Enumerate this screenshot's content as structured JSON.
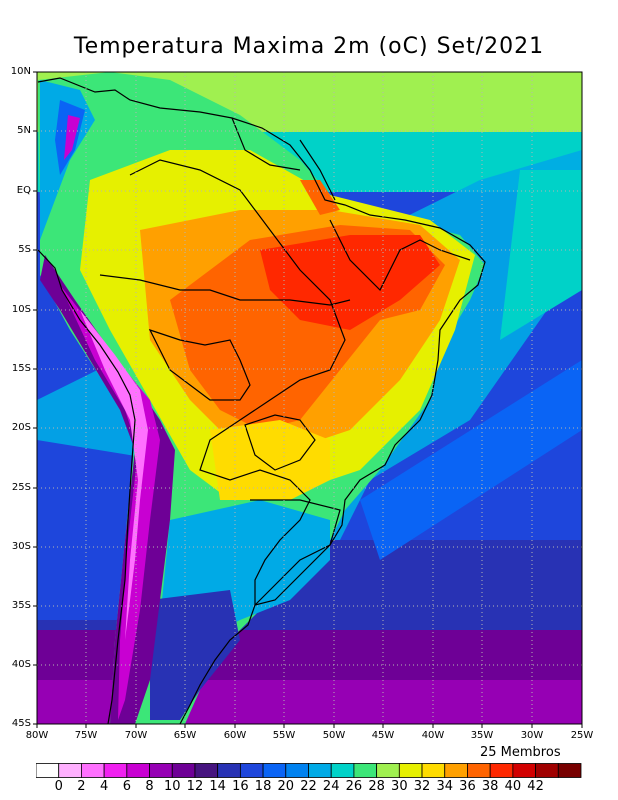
{
  "title": "Temperatura Maxima 2m (oC) Set/2021",
  "members_label": "25 Membros",
  "lat_ticks": [
    "10N",
    "5N",
    "EQ",
    "5S",
    "10S",
    "15S",
    "20S",
    "25S",
    "30S",
    "35S",
    "40S",
    "45S"
  ],
  "lon_ticks": [
    "80W",
    "75W",
    "70W",
    "65W",
    "60W",
    "55W",
    "50W",
    "45W",
    "40W",
    "35W",
    "30W",
    "25W"
  ],
  "colorbar": {
    "labels": [
      "0",
      "2",
      "4",
      "6",
      "8",
      "10",
      "12",
      "14",
      "16",
      "18",
      "20",
      "22",
      "24",
      "26",
      "28",
      "30",
      "32",
      "34",
      "36",
      "38",
      "40",
      "42"
    ],
    "colors": [
      "#ffffff",
      "#ffb0ff",
      "#ff70ff",
      "#f020f0",
      "#c800d2",
      "#9600b4",
      "#6e0096",
      "#46147f",
      "#2832b4",
      "#1e46dc",
      "#0a64f5",
      "#0082f0",
      "#00aae6",
      "#00d2c8",
      "#3ce678",
      "#a0f050",
      "#e6f000",
      "#ffdc00",
      "#ffa000",
      "#ff6400",
      "#ff2800",
      "#d20000",
      "#a00000",
      "#780000"
    ]
  },
  "map": {
    "region": "South America",
    "lon_range": [
      -80,
      -25
    ],
    "lat_range": [
      -45,
      10
    ]
  }
}
